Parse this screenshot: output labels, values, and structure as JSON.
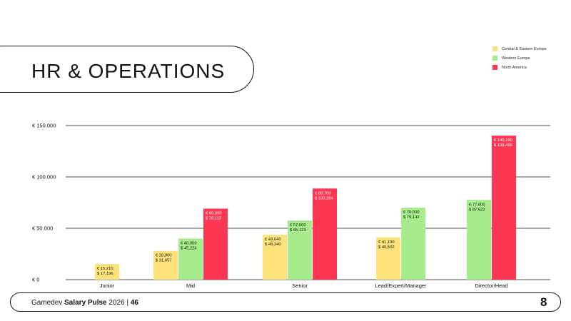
{
  "page": {
    "title": "HR & OPERATIONS"
  },
  "footer": {
    "brand": "Gamedev",
    "name": "Salary Pulse",
    "year": "2026",
    "separator": "|",
    "page_number": "46",
    "logo": "8"
  },
  "colors": {
    "cee": "#fde27a",
    "we": "#a6ec8c",
    "na": "#fd3654"
  },
  "chart_data": {
    "type": "bar",
    "categories": [
      "Junior",
      "Mid",
      "Senior",
      "Lead/Expert/Manager",
      "Director/Head"
    ],
    "y_tick_labels": [
      "€ 0",
      "€ 50.000",
      "€ 100.000",
      "€ 150.000"
    ],
    "y_ticks": [
      0,
      50000,
      100000,
      150000
    ],
    "ylim": [
      0,
      150000
    ],
    "legend_position": "top-right",
    "series": [
      {
        "name": "Central & Eastern Europe",
        "color": "#fde27a",
        "values": [
          15210,
          28000,
          43640,
          41130,
          null
        ],
        "labels_eur": [
          "€ 15,210",
          "€ 28,000",
          "€ 43,640",
          "€ 41,130",
          null
        ],
        "labels_usd": [
          "$ 17,196",
          "$ 31,657",
          "$ 49,340",
          "$ 46,502",
          null
        ]
      },
      {
        "name": "Western Europe",
        "color": "#a6ec8c",
        "values": [
          null,
          40000,
          57600,
          70000,
          77600
        ],
        "labels_eur": [
          null,
          "€ 40,000",
          "€ 57,600",
          "€ 70,000",
          "€ 77,600"
        ],
        "labels_usd": [
          null,
          "$ 45,224",
          "$ 65,123",
          "$ 79,142",
          "$ 87,622"
        ]
      },
      {
        "name": "North America",
        "color": "#fd3654",
        "values": [
          null,
          69090,
          88700,
          null,
          140190
        ],
        "labels_eur": [
          null,
          "€ 69,090",
          "€ 88,700",
          null,
          "€ 140,190"
        ],
        "labels_usd": [
          null,
          "$ 78,113",
          "$ 100,284",
          null,
          "$ 158,499"
        ]
      }
    ]
  }
}
